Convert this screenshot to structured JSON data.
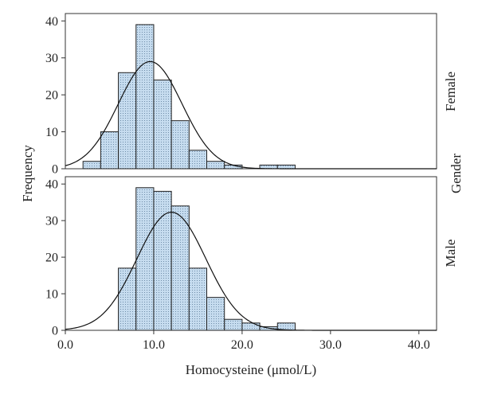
{
  "chart_data": {
    "type": "bar",
    "subtype": "histogram-faceted",
    "xlabel": "Homocysteine (μmol/L)",
    "ylabel": "Frequency",
    "facet_label": "Gender",
    "xlim": [
      0,
      42
    ],
    "ylim": [
      0,
      42
    ],
    "x_ticks": [
      0,
      10,
      20,
      30,
      40
    ],
    "x_tick_labels": [
      "0.0",
      "10.0",
      "20.0",
      "30.0",
      "40.0"
    ],
    "y_ticks": [
      0,
      10,
      20,
      30,
      40
    ],
    "y_tick_labels": [
      "0",
      "10",
      "20",
      "30",
      "40"
    ],
    "bin_edges": [
      2,
      4,
      6,
      8,
      10,
      12,
      14,
      16,
      18,
      20,
      22,
      24,
      26
    ],
    "bar_fill": "#c6dcef",
    "panels": [
      {
        "name": "Female",
        "counts": [
          2,
          10,
          26,
          39,
          24,
          13,
          5,
          2,
          1,
          0,
          1,
          1
        ],
        "normal_curve": {
          "peak": 29,
          "mean": 9.6,
          "sd": 3.6
        }
      },
      {
        "name": "Male",
        "counts": [
          0,
          0,
          17,
          39,
          38,
          34,
          17,
          9,
          3,
          2,
          1,
          2
        ],
        "normal_curve": {
          "peak": 32.3,
          "mean": 12.0,
          "sd": 3.9
        }
      }
    ]
  }
}
